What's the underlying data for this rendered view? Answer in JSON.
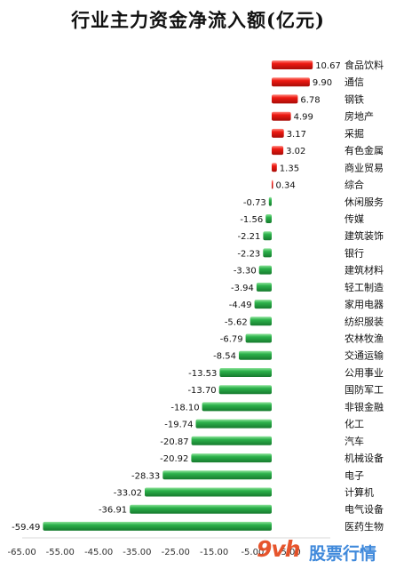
{
  "chart_data": {
    "type": "bar",
    "orientation": "horizontal",
    "title": "行业主力资金净流入额(亿元)",
    "categories": [
      "食品饮料",
      "通信",
      "钢铁",
      "房地产",
      "采掘",
      "有色金属",
      "商业贸易",
      "综合",
      "休闲服务",
      "传媒",
      "建筑装饰",
      "银行",
      "建筑材料",
      "轻工制造",
      "家用电器",
      "纺织服装",
      "农林牧渔",
      "交通运输",
      "公用事业",
      "国防军工",
      "非银金融",
      "化工",
      "汽车",
      "机械设备",
      "电子",
      "计算机",
      "电气设备",
      "医药生物"
    ],
    "values": [
      10.67,
      9.9,
      6.78,
      4.99,
      3.17,
      3.02,
      1.35,
      0.34,
      -0.73,
      -1.56,
      -2.21,
      -2.23,
      -3.3,
      -3.94,
      -4.49,
      -5.62,
      -6.79,
      -8.54,
      -13.53,
      -13.7,
      -18.1,
      -19.74,
      -20.87,
      -20.92,
      -28.33,
      -33.02,
      -36.91,
      -59.49
    ],
    "data_labels": [
      "10.67",
      "9.90",
      "6.78",
      "4.99",
      "3.17",
      "3.02",
      "1.35",
      "0.34",
      "-0.73",
      "-1.56",
      "-2.21",
      "-2.23",
      "-3.30",
      "-3.94",
      "-4.49",
      "-5.62",
      "-6.79",
      "-8.54",
      "-13.53",
      "-13.70",
      "-18.10",
      "-19.74",
      "-20.87",
      "-20.92",
      "-28.33",
      "-33.02",
      "-36.91",
      "-59.49"
    ],
    "xticks": [
      "-65.00",
      "-55.00",
      "-45.00",
      "-35.00",
      "-25.00",
      "-15.00",
      "-5.00",
      "5.00"
    ],
    "xlim": [
      -65,
      15
    ],
    "grid": false,
    "colors": {
      "positive": "#e3140f",
      "negative": "#27a845"
    }
  },
  "watermark": {
    "logo": "9vh",
    "text": "股票行情",
    "logo_color": "#e4471c",
    "text_color": "#2f7fd8"
  }
}
